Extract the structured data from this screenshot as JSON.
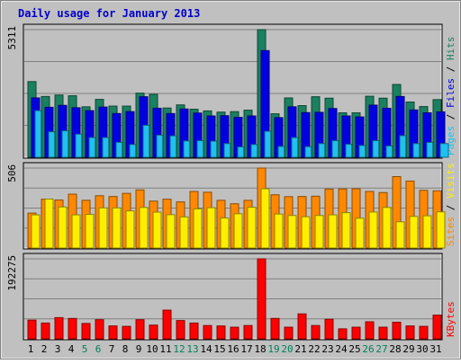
{
  "chart_data": {
    "type": "bar",
    "title": "Daily usage for January 2013",
    "categories": [
      "1",
      "2",
      "3",
      "4",
      "5",
      "6",
      "7",
      "8",
      "9",
      "10",
      "11",
      "12",
      "13",
      "14",
      "15",
      "16",
      "17",
      "18",
      "19",
      "20",
      "21",
      "22",
      "23",
      "24",
      "25",
      "26",
      "27",
      "28",
      "29",
      "30",
      "31"
    ],
    "weekend_days": [
      5,
      6,
      12,
      13,
      19,
      20,
      26,
      27
    ],
    "panels": [
      {
        "name": "requests",
        "ymax": 5311,
        "ymax_label": "5311",
        "right_labels": [
          "Pages",
          "Files",
          "Hits"
        ],
        "series": [
          {
            "name": "Hits",
            "color": "#1a8060",
            "values": [
              3150,
              2530,
              2590,
              2560,
              2100,
              2410,
              2130,
              2130,
              2670,
              2620,
              2050,
              2180,
              2000,
              1930,
              1880,
              1900,
              1960,
              5311,
              1810,
              2470,
              2150,
              2520,
              2460,
              1850,
              1850,
              2540,
              2460,
              3030,
              2300,
              2110,
              2400
            ]
          },
          {
            "name": "Files",
            "color": "#0000e0",
            "values": [
              2470,
              2080,
              2160,
              2060,
              1940,
              2090,
              1820,
              1900,
              2520,
              2040,
              1820,
              2010,
              1840,
              1720,
              1730,
              1660,
              1720,
              4440,
              1650,
              2100,
              1860,
              1870,
              2030,
              1720,
              1680,
              2170,
              2040,
              2530,
              1970,
              1850,
              1890
            ]
          },
          {
            "name": "Pages",
            "color": "#20c0f0",
            "values": [
              1940,
              1060,
              1100,
              960,
              820,
              820,
              620,
              530,
              1330,
              920,
              890,
              680,
              690,
              670,
              570,
              430,
              530,
              1080,
              450,
              820,
              440,
              570,
              690,
              540,
              490,
              690,
              470,
              900,
              570,
              620,
              570
            ]
          }
        ]
      },
      {
        "name": "visitors",
        "ymax": 506,
        "ymax_label": "506",
        "right_labels": [
          "Sites",
          "Visits"
        ],
        "series": [
          {
            "name": "Visits",
            "color": "#ff8800",
            "values": [
              221,
              309,
              304,
              341,
              302,
              331,
              326,
              346,
              368,
              297,
              309,
              292,
              358,
              353,
              302,
              280,
              302,
              506,
              337,
              325,
              326,
              328,
              373,
              374,
              375,
              358,
              351,
              452,
              424,
              365,
              362
            ]
          },
          {
            "name": "Sites",
            "color": "#ffee00",
            "values": [
              210,
              310,
              260,
              210,
              213,
              254,
              254,
              235,
              257,
              227,
              211,
              197,
              248,
              255,
              190,
              217,
              258,
              375,
              215,
              206,
              198,
              206,
              210,
              224,
              189,
              228,
              257,
              166,
              200,
              204,
              229
            ]
          }
        ]
      },
      {
        "name": "kbytes",
        "ymax": 192275,
        "ymax_label": "192275",
        "right_labels": [
          "KBytes"
        ],
        "series": [
          {
            "name": "KBytes",
            "color": "#ff0000",
            "values": [
              45000,
              38000,
              51000,
              49000,
              37000,
              46000,
              31000,
              30000,
              46000,
              33000,
              69000,
              44000,
              38000,
              32000,
              31000,
              28000,
              32000,
              192275,
              49000,
              28000,
              60000,
              32000,
              47000,
              24000,
              28000,
              41000,
              28000,
              40000,
              31000,
              30000,
              57000
            ]
          }
        ]
      }
    ]
  }
}
